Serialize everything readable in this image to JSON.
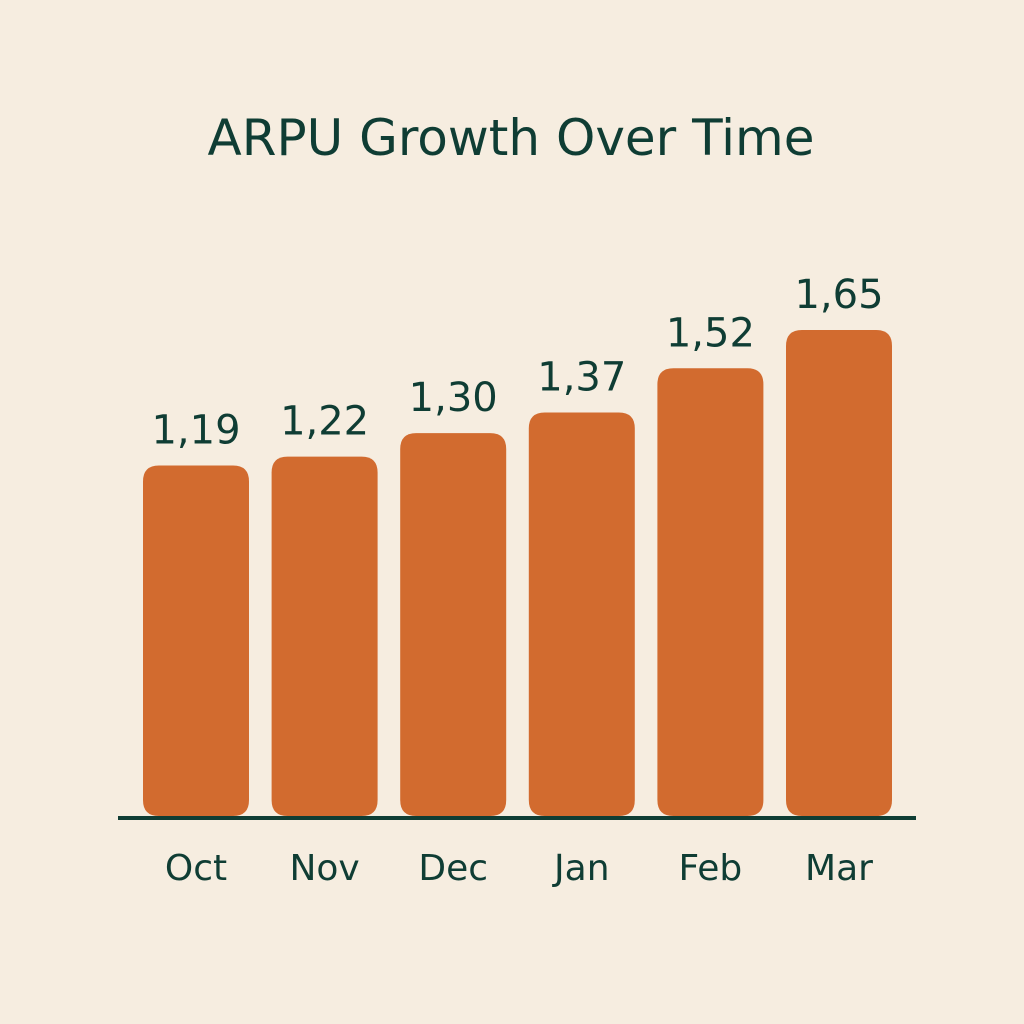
{
  "chart_data": {
    "type": "bar",
    "title": "ARPU Growth Over Time",
    "categories": [
      "Oct",
      "Nov",
      "Dec",
      "Jan",
      "Feb",
      "Mar"
    ],
    "values": [
      1.19,
      1.22,
      1.3,
      1.37,
      1.52,
      1.65
    ],
    "value_labels": [
      "1,19",
      "1,22",
      "1,30",
      "1,37",
      "1,52",
      "1,65"
    ],
    "xlabel": "",
    "ylabel": "",
    "ylim": [
      0,
      1.65
    ],
    "grid": false,
    "legend": "none",
    "y_axis_visible": false
  },
  "colors": {
    "background": "#F6EDE0",
    "bar": "#D26B2F",
    "text": "#0F3D34",
    "baseline": "#0F3D34"
  }
}
